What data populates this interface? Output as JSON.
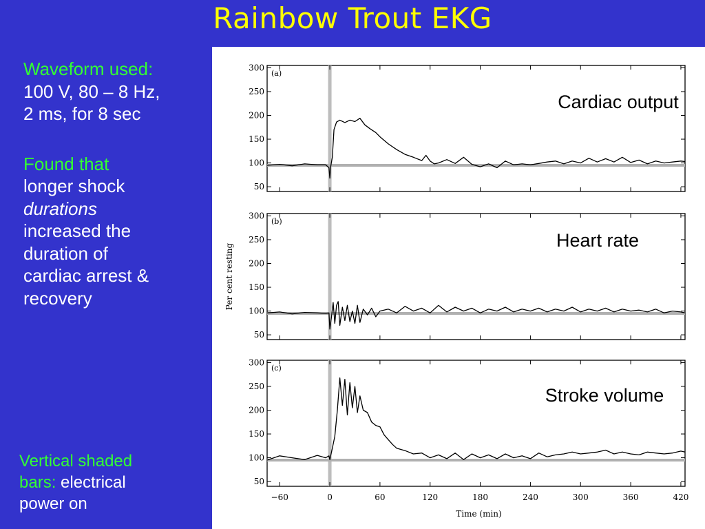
{
  "slide": {
    "title": "Rainbow Trout EKG",
    "waveform_heading": "Waveform used:",
    "waveform_detail_1": "100 V, 80 – 8 Hz,",
    "waveform_detail_2": "2 ms, for 8 sec",
    "finding_1": "Found that",
    "finding_2": "longer shock",
    "finding_3": "durations",
    "finding_4": "increased the",
    "finding_5": "duration of",
    "finding_6": "cardiac arrest &",
    "finding_7": "recovery",
    "note_green_1": "Vertical shaded",
    "note_green_2": "bars:",
    "note_white_1": "electrical",
    "note_white_2": "power on"
  },
  "colors": {
    "background": "#3333cc",
    "title": "#ffff00",
    "accent_text": "#33ff33",
    "body_text": "#ffffff"
  },
  "chart_data": {
    "type": "line",
    "xlabel": "Time (min)",
    "ylabel": "Per cent resting",
    "xlim": [
      -75,
      425
    ],
    "x_ticks": [
      -60,
      0,
      60,
      120,
      180,
      240,
      300,
      360,
      420
    ],
    "x_tick_labels": [
      "−60",
      "0",
      "60",
      "120",
      "180",
      "240",
      "300",
      "360",
      "420"
    ],
    "ylim": [
      40,
      305
    ],
    "y_ticks": [
      50,
      100,
      150,
      200,
      250,
      300
    ],
    "y_tick_labels": [
      "50",
      "100",
      "150",
      "200",
      "250",
      "300"
    ],
    "reference_line_y": 95,
    "power_on_bar_x": 0,
    "panels": [
      {
        "panel_label": "(a)",
        "series_label": "Cardiac output",
        "x": [
          -75,
          -60,
          -45,
          -30,
          -15,
          -5,
          -1,
          0,
          1,
          3,
          5,
          8,
          12,
          18,
          24,
          30,
          36,
          42,
          48,
          55,
          60,
          70,
          80,
          90,
          100,
          110,
          115,
          120,
          125,
          130,
          140,
          150,
          160,
          170,
          180,
          190,
          200,
          210,
          220,
          230,
          240,
          250,
          260,
          270,
          280,
          290,
          300,
          310,
          320,
          330,
          340,
          350,
          360,
          370,
          380,
          390,
          400,
          410,
          420,
          425
        ],
        "y": [
          95,
          97,
          94,
          98,
          96,
          96,
          90,
          68,
          92,
          112,
          170,
          186,
          190,
          185,
          190,
          187,
          194,
          180,
          172,
          164,
          155,
          140,
          128,
          118,
          112,
          105,
          116,
          104,
          98,
          100,
          107,
          99,
          112,
          97,
          92,
          98,
          90,
          104,
          96,
          98,
          96,
          99,
          102,
          104,
          98,
          104,
          100,
          110,
          102,
          109,
          102,
          112,
          101,
          106,
          98,
          104,
          100,
          102,
          104,
          103
        ]
      },
      {
        "panel_label": "(b)",
        "series_label": "Heart rate",
        "x": [
          -75,
          -60,
          -45,
          -30,
          -15,
          -5,
          -1,
          0,
          2,
          4,
          6,
          8,
          10,
          12,
          15,
          18,
          21,
          24,
          27,
          30,
          33,
          36,
          40,
          45,
          50,
          55,
          60,
          70,
          80,
          90,
          100,
          110,
          120,
          130,
          140,
          150,
          160,
          170,
          180,
          190,
          200,
          210,
          220,
          230,
          240,
          250,
          260,
          270,
          280,
          290,
          300,
          310,
          320,
          330,
          340,
          350,
          360,
          370,
          380,
          390,
          400,
          410,
          420,
          425
        ],
        "y": [
          96,
          98,
          94,
          97,
          96,
          95,
          96,
          62,
          88,
          118,
          74,
          112,
          120,
          70,
          108,
          80,
          112,
          78,
          100,
          74,
          112,
          76,
          104,
          92,
          106,
          88,
          100,
          104,
          96,
          110,
          100,
          106,
          96,
          112,
          98,
          108,
          100,
          106,
          96,
          104,
          100,
          108,
          98,
          104,
          100,
          106,
          98,
          104,
          100,
          108,
          98,
          104,
          100,
          106,
          98,
          104,
          100,
          102,
          98,
          104,
          96,
          100,
          98,
          96
        ]
      },
      {
        "panel_label": "(c)",
        "series_label": "Stroke volume",
        "x": [
          -75,
          -60,
          -45,
          -30,
          -15,
          -5,
          -1,
          0,
          3,
          6,
          9,
          12,
          15,
          18,
          21,
          24,
          27,
          30,
          33,
          36,
          40,
          45,
          50,
          55,
          60,
          65,
          70,
          75,
          80,
          90,
          100,
          110,
          120,
          130,
          140,
          150,
          160,
          170,
          180,
          190,
          200,
          210,
          220,
          230,
          240,
          250,
          260,
          270,
          280,
          290,
          300,
          310,
          320,
          330,
          340,
          350,
          360,
          370,
          380,
          390,
          400,
          410,
          420,
          425
        ],
        "y": [
          95,
          104,
          100,
          96,
          105,
          100,
          104,
          96,
          120,
          145,
          200,
          268,
          210,
          265,
          190,
          258,
          205,
          250,
          195,
          230,
          200,
          195,
          175,
          168,
          165,
          148,
          138,
          128,
          120,
          115,
          108,
          110,
          100,
          106,
          98,
          110,
          96,
          108,
          100,
          106,
          98,
          108,
          100,
          104,
          98,
          110,
          102,
          106,
          108,
          112,
          108,
          110,
          112,
          116,
          108,
          112,
          108,
          106,
          112,
          110,
          108,
          110,
          114,
          112
        ]
      }
    ]
  }
}
